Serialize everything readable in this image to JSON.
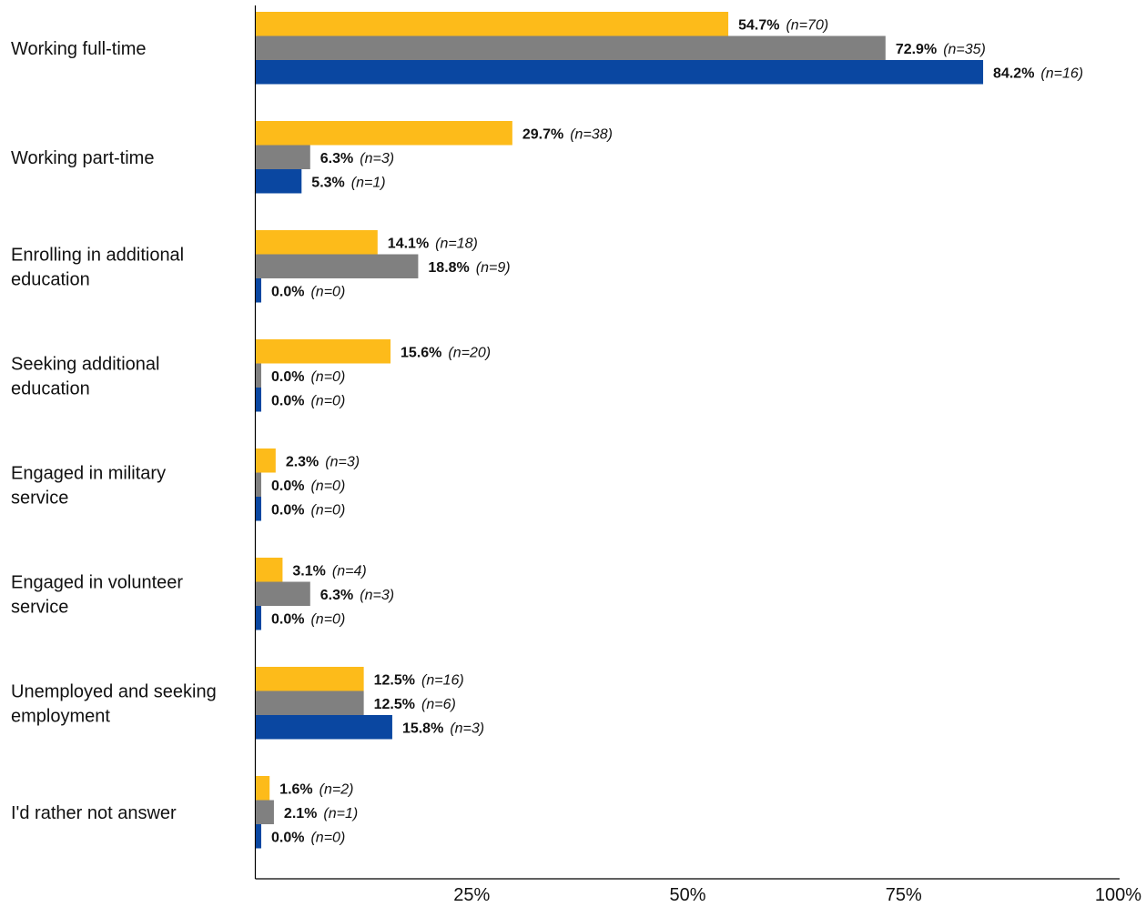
{
  "chart_data": {
    "type": "bar",
    "orientation": "horizontal",
    "categories": [
      [
        "Working full-time"
      ],
      [
        "Working part-time"
      ],
      [
        "Enrolling in additional",
        "education"
      ],
      [
        "Seeking additional",
        "education"
      ],
      [
        "Engaged in military",
        "service"
      ],
      [
        "Engaged in volunteer",
        "service"
      ],
      [
        "Unemployed and seeking",
        "employment"
      ],
      [
        "I'd rather not answer"
      ]
    ],
    "series": [
      {
        "color": "#FDBB1A",
        "values": [
          54.7,
          29.7,
          14.1,
          15.6,
          2.3,
          3.1,
          12.5,
          1.6
        ],
        "pct_labels": [
          "54.7%",
          "29.7%",
          "14.1%",
          "15.6%",
          "2.3%",
          "3.1%",
          "12.5%",
          "1.6%"
        ],
        "n_labels": [
          "(n=70)",
          "(n=38)",
          "(n=18)",
          "(n=20)",
          "(n=3)",
          "(n=4)",
          "(n=16)",
          "(n=2)"
        ]
      },
      {
        "color": "#808080",
        "values": [
          72.9,
          6.3,
          18.8,
          0.0,
          0.0,
          6.3,
          12.5,
          2.1
        ],
        "pct_labels": [
          "72.9%",
          "6.3%",
          "18.8%",
          "0.0%",
          "0.0%",
          "6.3%",
          "12.5%",
          "2.1%"
        ],
        "n_labels": [
          "(n=35)",
          "(n=3)",
          "(n=9)",
          "(n=0)",
          "(n=0)",
          "(n=3)",
          "(n=6)",
          "(n=1)"
        ]
      },
      {
        "color": "#0A47A1",
        "values": [
          84.2,
          5.3,
          0.0,
          0.0,
          0.0,
          0.0,
          15.8,
          0.0
        ],
        "pct_labels": [
          "84.2%",
          "5.3%",
          "0.0%",
          "0.0%",
          "0.0%",
          "0.0%",
          "15.8%",
          "0.0%"
        ],
        "n_labels": [
          "(n=16)",
          "(n=1)",
          "(n=0)",
          "(n=0)",
          "(n=0)",
          "(n=0)",
          "(n=3)",
          "(n=0)"
        ]
      }
    ],
    "x_ticks": [
      {
        "value": 25,
        "label": "25%"
      },
      {
        "value": 50,
        "label": "50%"
      },
      {
        "value": 75,
        "label": "75%"
      },
      {
        "value": 100,
        "label": "100%"
      }
    ],
    "xlim": [
      0,
      100
    ],
    "title": "",
    "xlabel": "",
    "ylabel": "",
    "grid": false,
    "legend": "none"
  }
}
